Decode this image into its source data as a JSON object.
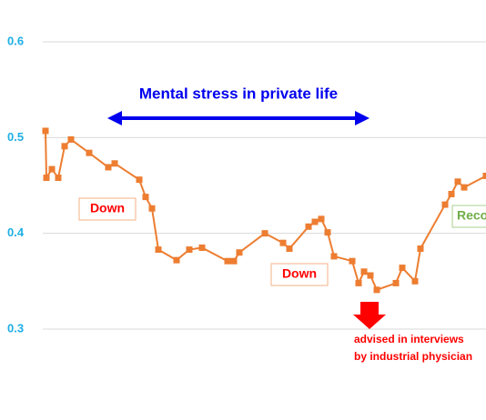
{
  "chart_data": {
    "type": "line",
    "x": [
      50,
      51,
      57,
      64,
      71,
      78,
      98,
      119,
      126,
      153,
      160,
      167,
      174,
      194,
      208,
      222,
      250,
      257,
      263,
      291,
      311,
      318,
      339,
      346,
      353,
      360,
      367,
      387,
      394,
      400,
      407,
      414,
      435,
      442,
      456,
      462,
      489,
      496,
      503,
      510,
      534
    ],
    "xlim": [
      47,
      534
    ],
    "series": [
      {
        "name": "stress",
        "color": "#ed7d31",
        "values": [
          0.507,
          0.458,
          0.467,
          0.458,
          0.491,
          0.498,
          0.484,
          0.469,
          0.473,
          0.456,
          0.438,
          0.426,
          0.383,
          0.372,
          0.383,
          0.385,
          0.371,
          0.371,
          0.38,
          0.4,
          0.39,
          0.384,
          0.407,
          0.412,
          0.415,
          0.401,
          0.376,
          0.371,
          0.348,
          0.36,
          0.356,
          0.341,
          0.348,
          0.364,
          0.35,
          0.384,
          0.43,
          0.441,
          0.454,
          0.448,
          0.46
        ]
      }
    ],
    "ylim": [
      0.3,
      0.6
    ],
    "yticks": [
      0.3,
      0.4,
      0.5,
      0.6
    ],
    "grid": true,
    "annotations": [
      "Mental stress in private life",
      "Down",
      "Down",
      "Reco",
      "advised in interviews",
      "by industrial physician"
    ]
  }
}
